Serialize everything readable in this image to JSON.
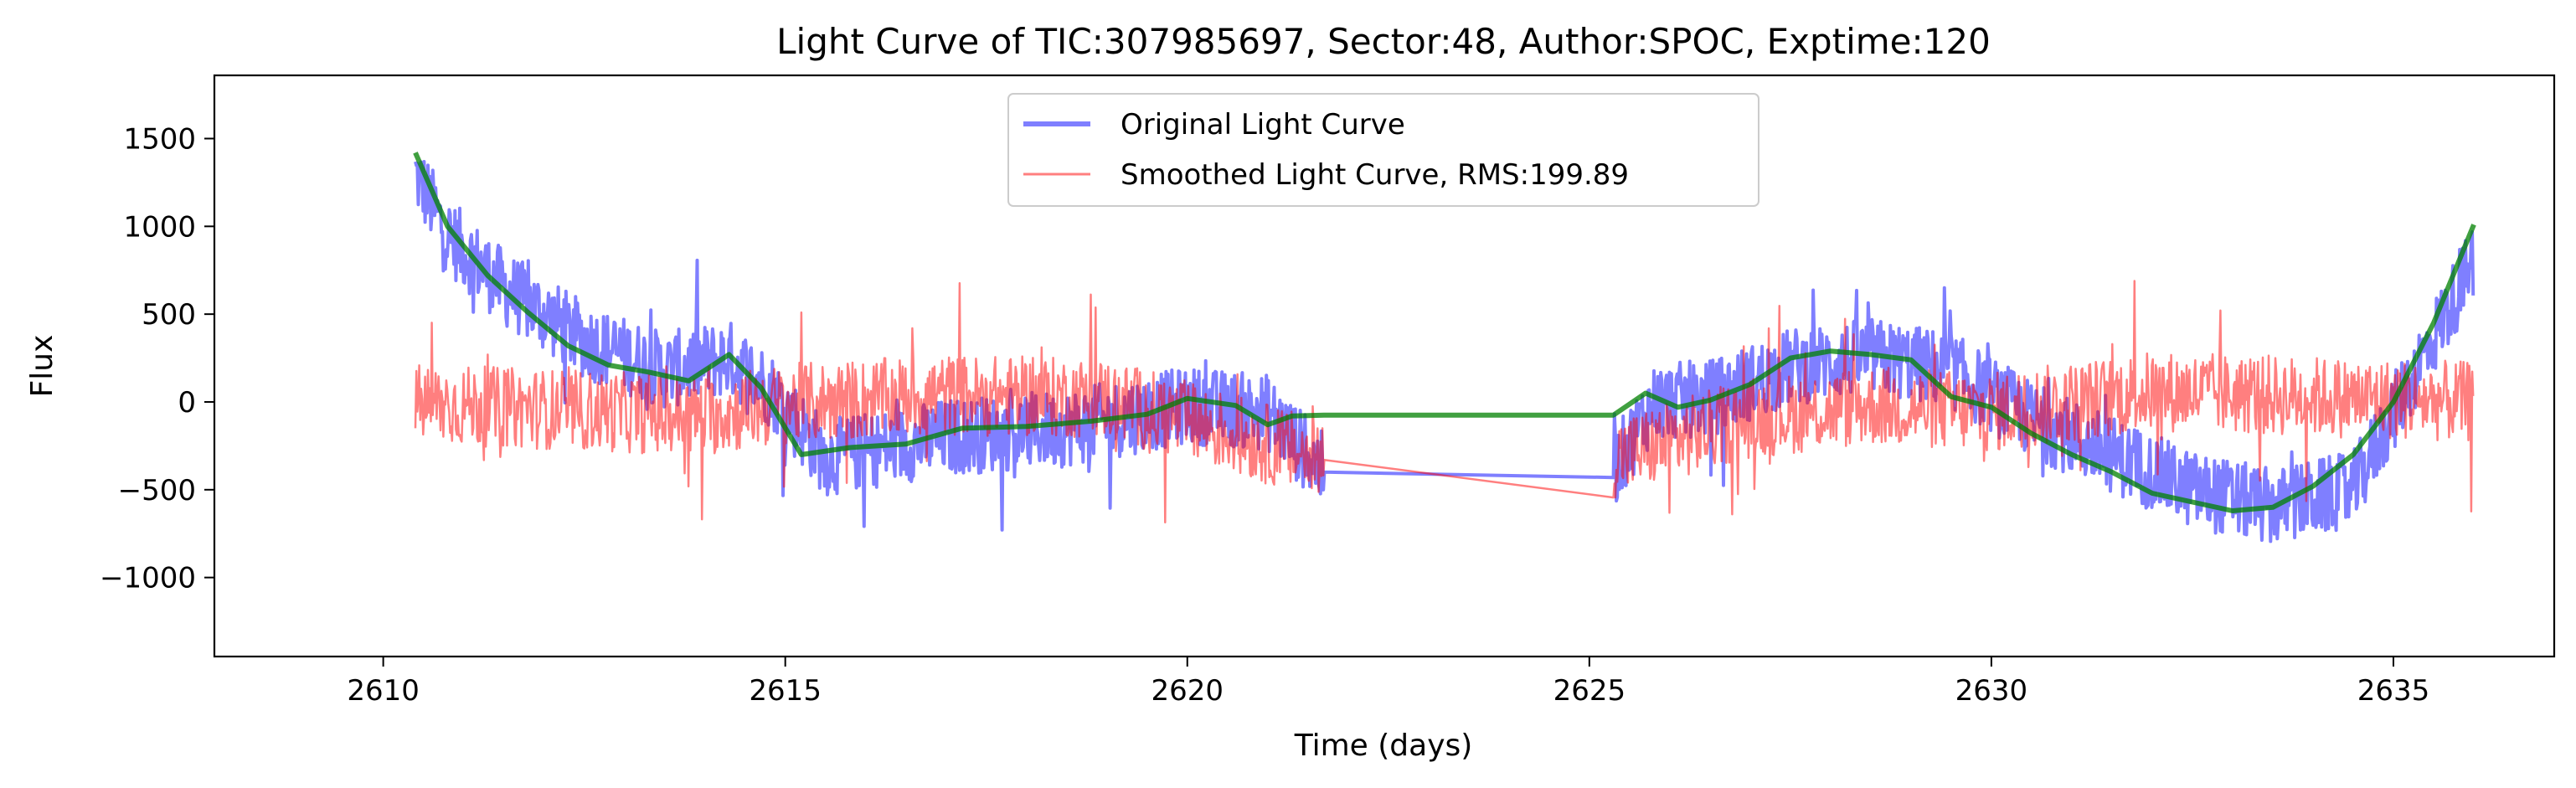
{
  "chart_data": {
    "type": "line",
    "title": "Light Curve of TIC:307985697, Sector:48, Author:SPOC, Exptime:120",
    "xlabel": "Time (days)",
    "ylabel": "Flux",
    "xlim": [
      2607.9,
      2637.0
    ],
    "ylim": [
      -1450,
      1860
    ],
    "x_ticks": [
      2610,
      2615,
      2620,
      2625,
      2630,
      2635
    ],
    "x_tick_labels": [
      "2610",
      "2615",
      "2620",
      "2625",
      "2630",
      "2635"
    ],
    "y_ticks": [
      -1000,
      -500,
      0,
      500,
      1000,
      1500
    ],
    "y_tick_labels": [
      "−1000",
      "−500",
      "0",
      "500",
      "1000",
      "1500"
    ],
    "grid": false,
    "legend": {
      "placement": "top-center"
    },
    "gap": [
      2621.7,
      2625.3
    ],
    "series": [
      {
        "name": "Original Light Curve",
        "color": "#0000ff",
        "alpha": 0.5,
        "style": "noisy",
        "noise_amplitude": 220,
        "trend": {
          "x": [
            2610.4,
            2610.8,
            2611.5,
            2612.5,
            2613.5,
            2614.3,
            2614.8,
            2615.5,
            2617.0,
            2618.5,
            2620.0,
            2621.0,
            2621.7,
            2625.3,
            2625.8,
            2626.5,
            2627.5,
            2628.5,
            2629.5,
            2630.5,
            2631.5,
            2632.5,
            2633.5,
            2634.5,
            2635.3,
            2636.0
          ],
          "y": [
            1300,
            950,
            650,
            350,
            180,
            250,
            80,
            -320,
            -200,
            -150,
            -20,
            -60,
            -400,
            -390,
            0,
            20,
            200,
            260,
            180,
            -100,
            -300,
            -500,
            -600,
            -500,
            200,
            800
          ]
        }
      },
      {
        "name": "Smoothed Light Curve, RMS:199.89",
        "color": "#ff0000",
        "alpha": 0.5,
        "style": "noisy",
        "noise_amplitude": 230,
        "trend": {
          "x": [
            2610.4,
            2612.0,
            2614.0,
            2615.0,
            2617.0,
            2619.0,
            2621.7,
            2625.3,
            2627.0,
            2628.5,
            2630.0,
            2632.0,
            2634.0,
            2636.0
          ],
          "y": [
            -10,
            -40,
            -80,
            -10,
            40,
            20,
            -330,
            -320,
            -90,
            -20,
            -60,
            60,
            30,
            0
          ]
        }
      },
      {
        "name": "",
        "color": "#008000",
        "alpha": 0.75,
        "style": "smooth",
        "x": [
          2610.4,
          2610.8,
          2611.3,
          2611.8,
          2612.3,
          2612.8,
          2613.3,
          2613.8,
          2614.3,
          2614.7,
          2615.2,
          2615.8,
          2616.5,
          2617.2,
          2618.0,
          2618.8,
          2619.5,
          2620.0,
          2620.6,
          2621.0,
          2621.3,
          2621.7,
          2625.3,
          2625.7,
          2626.1,
          2626.5,
          2627.0,
          2627.5,
          2628.0,
          2628.5,
          2629.0,
          2629.5,
          2630.0,
          2630.5,
          2631.0,
          2631.5,
          2632.0,
          2632.5,
          2633.0,
          2633.5,
          2634.0,
          2634.5,
          2635.0,
          2635.5,
          2636.0
        ],
        "y": [
          1420,
          1000,
          720,
          510,
          320,
          210,
          170,
          120,
          270,
          80,
          -300,
          -260,
          -240,
          -150,
          -140,
          -110,
          -70,
          20,
          -20,
          -130,
          -80,
          -75,
          -75,
          50,
          -30,
          10,
          100,
          250,
          290,
          270,
          240,
          30,
          -30,
          -180,
          -300,
          -400,
          -520,
          -570,
          -620,
          -600,
          -480,
          -300,
          0,
          450,
          1010
        ]
      }
    ]
  }
}
